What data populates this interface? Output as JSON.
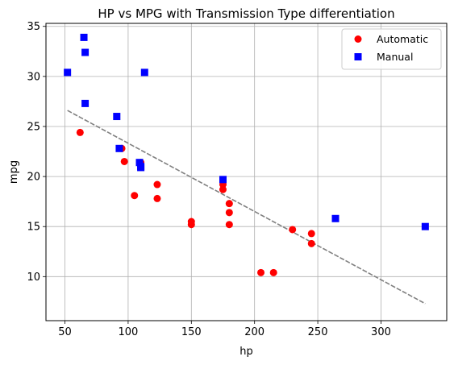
{
  "chart_data": {
    "type": "scatter",
    "title": "HP vs MPG with Transmission Type differentiation",
    "xlabel": "hp",
    "ylabel": "mpg",
    "xlim": [
      35,
      352
    ],
    "ylim": [
      5.6,
      35.3
    ],
    "xticks": [
      50,
      100,
      150,
      200,
      250,
      300
    ],
    "yticks": [
      10,
      15,
      20,
      25,
      30,
      35
    ],
    "grid": true,
    "legend_position": "top-right",
    "series": [
      {
        "name": "Automatic",
        "marker": "circle",
        "color": "#ff0000",
        "points": [
          [
            110,
            21.4
          ],
          [
            175,
            18.7
          ],
          [
            105,
            18.1
          ],
          [
            245,
            14.3
          ],
          [
            62,
            24.4
          ],
          [
            95,
            22.8
          ],
          [
            123,
            19.2
          ],
          [
            123,
            17.8
          ],
          [
            180,
            16.4
          ],
          [
            180,
            17.3
          ],
          [
            180,
            15.2
          ],
          [
            205,
            10.4
          ],
          [
            215,
            10.4
          ],
          [
            230,
            14.7
          ],
          [
            97,
            21.5
          ],
          [
            150,
            15.5
          ],
          [
            150,
            15.2
          ],
          [
            245,
            13.3
          ],
          [
            175,
            19.2
          ]
        ]
      },
      {
        "name": "Manual",
        "marker": "square",
        "color": "#0000ff",
        "points": [
          [
            110,
            21.0
          ],
          [
            110,
            20.9
          ],
          [
            93,
            22.8
          ],
          [
            66,
            32.4
          ],
          [
            52,
            30.4
          ],
          [
            65,
            33.9
          ],
          [
            66,
            27.3
          ],
          [
            91,
            26.0
          ],
          [
            113,
            30.4
          ],
          [
            264,
            15.8
          ],
          [
            175,
            19.7
          ],
          [
            335,
            15.0
          ],
          [
            109,
            21.4
          ]
        ]
      }
    ],
    "trend_line": {
      "style": "dashed",
      "color": "#808080",
      "points": [
        [
          52,
          26.6
        ],
        [
          335,
          7.3
        ]
      ]
    }
  }
}
